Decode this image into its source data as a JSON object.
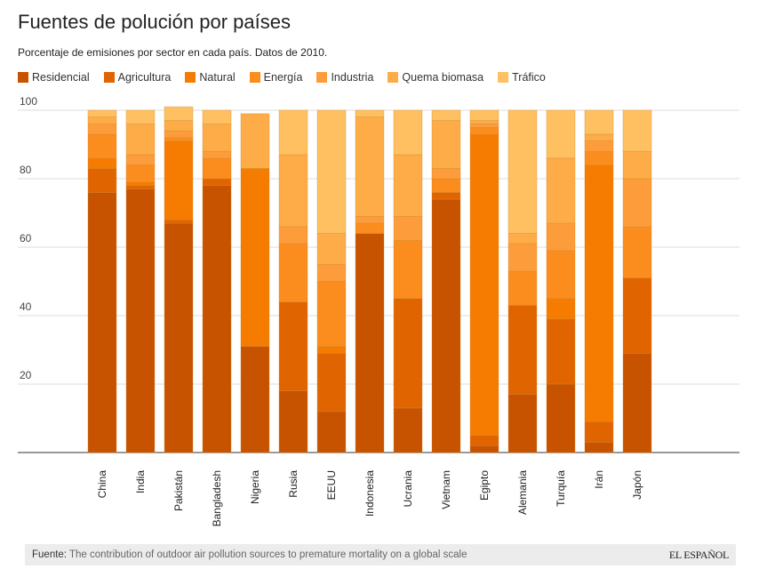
{
  "chart_data": {
    "type": "bar",
    "stacked": true,
    "title": "Fuentes de polución por países",
    "subtitle": "Porcentaje de emisiones por sector en cada país. Datos de 2010.",
    "ylim": [
      0,
      100
    ],
    "yticks": [
      20,
      40,
      60,
      80,
      100
    ],
    "grid": true,
    "legend_position": "top-left",
    "categories": [
      "China",
      "India",
      "Pakistán",
      "Bangladesh",
      "Nigeria",
      "Rusia",
      "EEUU",
      "Indonesia",
      "Ucrania",
      "Vietnam",
      "Egipto",
      "Alemania",
      "Turquía",
      "Irán",
      "Japón"
    ],
    "series": [
      {
        "name": "Residencial",
        "color": "#c75200",
        "values": [
          76,
          77,
          67,
          78,
          31,
          18,
          12,
          64,
          13,
          74,
          2,
          17,
          20,
          3,
          29
        ]
      },
      {
        "name": "Agricultura",
        "color": "#e06400",
        "values": [
          7,
          1,
          1,
          2,
          0,
          26,
          17,
          0,
          32,
          2,
          3,
          26,
          19,
          6,
          22
        ]
      },
      {
        "name": "Natural",
        "color": "#f57c00",
        "values": [
          3,
          1,
          23,
          0,
          52,
          0,
          2,
          0,
          0,
          0,
          88,
          0,
          6,
          75,
          0
        ]
      },
      {
        "name": "Energía",
        "color": "#fb8c1e",
        "values": [
          7,
          5,
          1,
          6,
          0,
          17,
          19,
          3,
          17,
          4,
          2,
          10,
          14,
          4,
          15
        ]
      },
      {
        "name": "Industria",
        "color": "#fd9c3a",
        "values": [
          3,
          3,
          2,
          2,
          0,
          5,
          5,
          2,
          7,
          3,
          1,
          8,
          8,
          3,
          14
        ]
      },
      {
        "name": "Quema biomasa",
        "color": "#fdac47",
        "values": [
          2,
          9,
          3,
          8,
          16,
          21,
          9,
          29,
          18,
          14,
          1,
          3,
          19,
          2,
          8
        ]
      },
      {
        "name": "Tráfico",
        "color": "#fec060",
        "values": [
          2,
          4,
          4,
          4,
          0,
          13,
          36,
          2,
          13,
          3,
          3,
          36,
          14,
          7,
          12
        ]
      }
    ]
  },
  "footer": {
    "source_label": "Fuente:",
    "source_text": "The contribution of outdoor air pollution sources to premature mortality on a global scale",
    "brand": "EL ESPAÑOL"
  }
}
